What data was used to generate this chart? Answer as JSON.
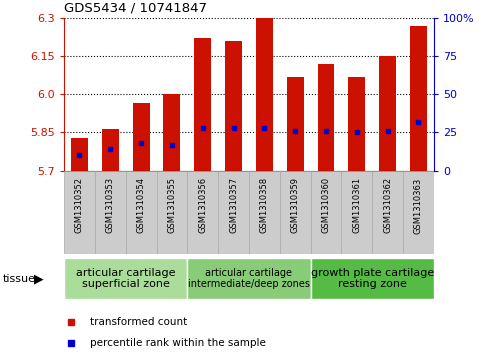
{
  "title": "GDS5434 / 10741847",
  "samples": [
    "GSM1310352",
    "GSM1310353",
    "GSM1310354",
    "GSM1310355",
    "GSM1310356",
    "GSM1310357",
    "GSM1310358",
    "GSM1310359",
    "GSM1310360",
    "GSM1310361",
    "GSM1310362",
    "GSM1310363"
  ],
  "red_values": [
    5.83,
    5.865,
    5.965,
    6.0,
    6.22,
    6.21,
    6.3,
    6.07,
    6.12,
    6.07,
    6.15,
    6.27
  ],
  "blue_values_pct": [
    10,
    14,
    18,
    17,
    28,
    28,
    28,
    26,
    26,
    25,
    26,
    32
  ],
  "ymin": 5.7,
  "ymax": 6.3,
  "yticks": [
    5.7,
    5.85,
    6.0,
    6.15,
    6.3
  ],
  "right_yticks": [
    0,
    25,
    50,
    75,
    100
  ],
  "bar_color": "#cc1100",
  "blue_color": "#0000cc",
  "grid_color": "#000000",
  "tick_cell_color": "#cccccc",
  "tick_cell_edge": "#aaaaaa",
  "tissue_groups": [
    {
      "label": "articular cartilage\nsuperficial zone",
      "start": 0,
      "end": 4,
      "color": "#99dd88",
      "fontsize": 8
    },
    {
      "label": "articular cartilage\nintermediate/deep zones",
      "start": 4,
      "end": 8,
      "color": "#66cc55",
      "fontsize": 7
    },
    {
      "label": "growth plate cartilage\nresting zone",
      "start": 8,
      "end": 12,
      "color": "#44bb33",
      "fontsize": 8
    }
  ],
  "bar_width": 0.55,
  "baseline": 5.7,
  "legend_items": [
    {
      "label": "transformed count",
      "color": "#cc1100"
    },
    {
      "label": "percentile rank within the sample",
      "color": "#0000cc"
    }
  ],
  "tissue_label": "tissue",
  "tissue_arrow": true
}
